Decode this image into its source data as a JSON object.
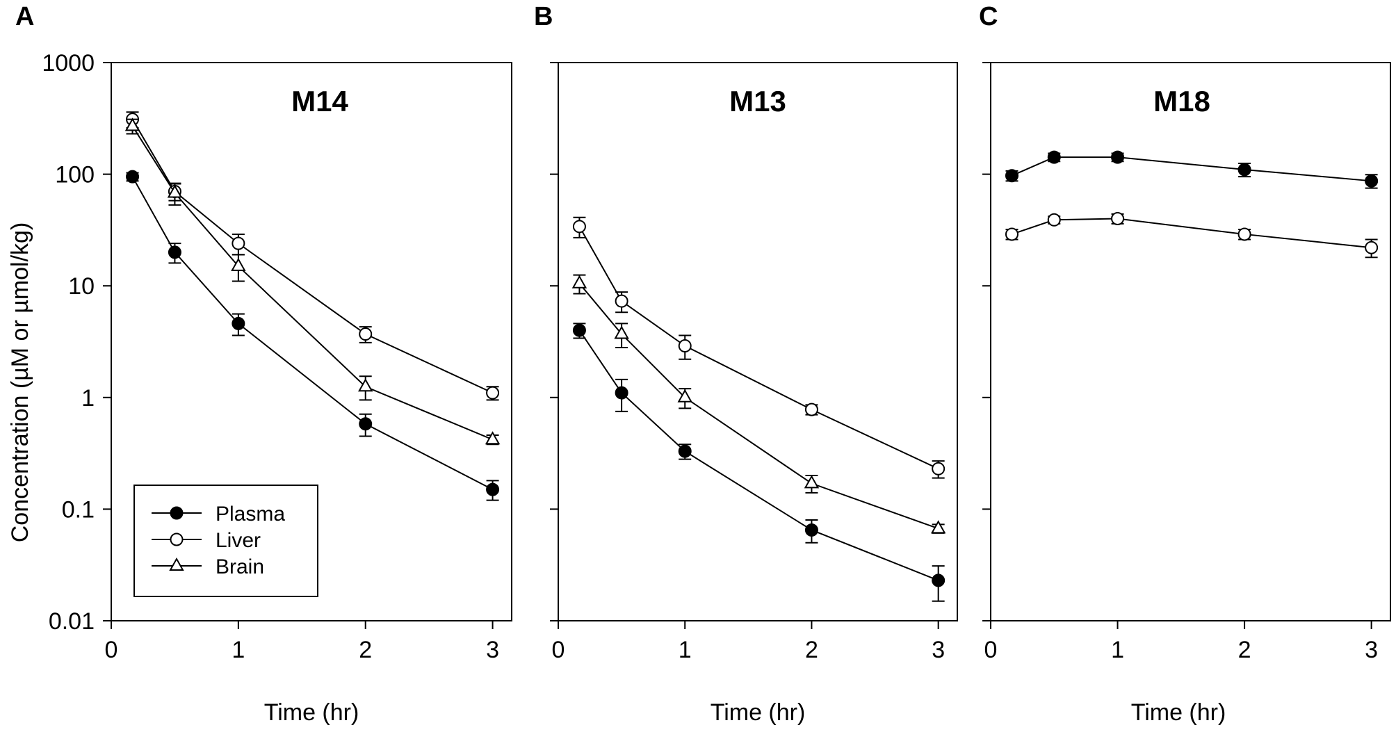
{
  "figure": {
    "ylabel": "Concentration (µM or µmol/kg)",
    "legend": {
      "placement": "bottom-left of panel A",
      "entries": [
        {
          "name": "Plasma",
          "marker": "filled-circle"
        },
        {
          "name": "Liver",
          "marker": "open-circle"
        },
        {
          "name": "Brain",
          "marker": "open-triangle"
        }
      ]
    }
  },
  "chart_data": [
    {
      "type": "line",
      "panel_letter": "A",
      "title": "M14",
      "xlabel": "Time (hr)",
      "ylabel": "Concentration (µM or µmol/kg)",
      "yscale": "log",
      "xlim": [
        0,
        3.15
      ],
      "ylim": [
        0.01,
        1000
      ],
      "xticks": [
        0,
        1,
        2,
        3
      ],
      "xtick_labels": [
        "0",
        "1",
        "2",
        "3"
      ],
      "yticks": [
        0.01,
        0.1,
        1,
        10,
        100,
        1000
      ],
      "ytick_labels": [
        "0.01",
        "0.1",
        "1",
        "10",
        "100",
        "1000"
      ],
      "grid": false,
      "series": [
        {
          "name": "Plasma",
          "marker": "filled-circle",
          "x": [
            0.167,
            0.5,
            1,
            2,
            3
          ],
          "y": [
            95,
            20,
            4.6,
            0.58,
            0.15
          ],
          "err": [
            8,
            4,
            1.0,
            0.13,
            0.03
          ]
        },
        {
          "name": "Liver",
          "marker": "open-circle",
          "x": [
            0.167,
            0.5,
            1,
            2,
            3
          ],
          "y": [
            310,
            70,
            24,
            3.7,
            1.1
          ],
          "err": [
            50,
            12,
            5,
            0.6,
            0.15
          ]
        },
        {
          "name": "Brain",
          "marker": "open-triangle",
          "x": [
            0.167,
            0.5,
            1,
            2,
            3
          ],
          "y": [
            270,
            68,
            15,
            1.25,
            0.42
          ],
          "err": [
            40,
            15,
            4,
            0.3,
            0.04
          ]
        }
      ]
    },
    {
      "type": "line",
      "panel_letter": "B",
      "title": "M13",
      "xlabel": "Time (hr)",
      "yscale": "log",
      "xlim": [
        0,
        3.15
      ],
      "ylim": [
        0.01,
        1000
      ],
      "xticks": [
        0,
        1,
        2,
        3
      ],
      "xtick_labels": [
        "0",
        "1",
        "2",
        "3"
      ],
      "yticks": [
        0.01,
        0.1,
        1,
        10,
        100,
        1000
      ],
      "grid": false,
      "series": [
        {
          "name": "Plasma",
          "marker": "filled-circle",
          "x": [
            0.167,
            0.5,
            1,
            2,
            3
          ],
          "y": [
            4.0,
            1.1,
            0.33,
            0.065,
            0.023
          ],
          "err": [
            0.6,
            0.35,
            0.05,
            0.015,
            0.008
          ]
        },
        {
          "name": "Liver",
          "marker": "open-circle",
          "x": [
            0.167,
            0.5,
            1,
            2,
            3
          ],
          "y": [
            34,
            7.3,
            2.9,
            0.78,
            0.23
          ],
          "err": [
            7,
            1.5,
            0.7,
            0.08,
            0.04
          ]
        },
        {
          "name": "Brain",
          "marker": "open-triangle",
          "x": [
            0.167,
            0.5,
            1,
            2,
            3
          ],
          "y": [
            10.5,
            3.7,
            1.0,
            0.17,
            0.067
          ],
          "err": [
            2,
            0.9,
            0.2,
            0.03,
            0.006
          ]
        }
      ]
    },
    {
      "type": "line",
      "panel_letter": "C",
      "title": "M18",
      "xlabel": "Time (hr)",
      "yscale": "log",
      "xlim": [
        0,
        3.15
      ],
      "ylim": [
        0.01,
        1000
      ],
      "xticks": [
        0,
        1,
        2,
        3
      ],
      "xtick_labels": [
        "0",
        "1",
        "2",
        "3"
      ],
      "yticks": [
        0.01,
        0.1,
        1,
        10,
        100,
        1000
      ],
      "grid": false,
      "series": [
        {
          "name": "Plasma",
          "marker": "filled-circle",
          "x": [
            0.167,
            0.5,
            1,
            2,
            3
          ],
          "y": [
            97,
            142,
            142,
            110,
            87
          ],
          "err": [
            10,
            12,
            12,
            15,
            12
          ]
        },
        {
          "name": "Liver",
          "marker": "open-circle",
          "x": [
            0.167,
            0.5,
            1,
            2,
            3
          ],
          "y": [
            29,
            39,
            40,
            29,
            22
          ],
          "err": [
            3,
            3,
            4,
            3,
            4
          ]
        }
      ]
    }
  ]
}
